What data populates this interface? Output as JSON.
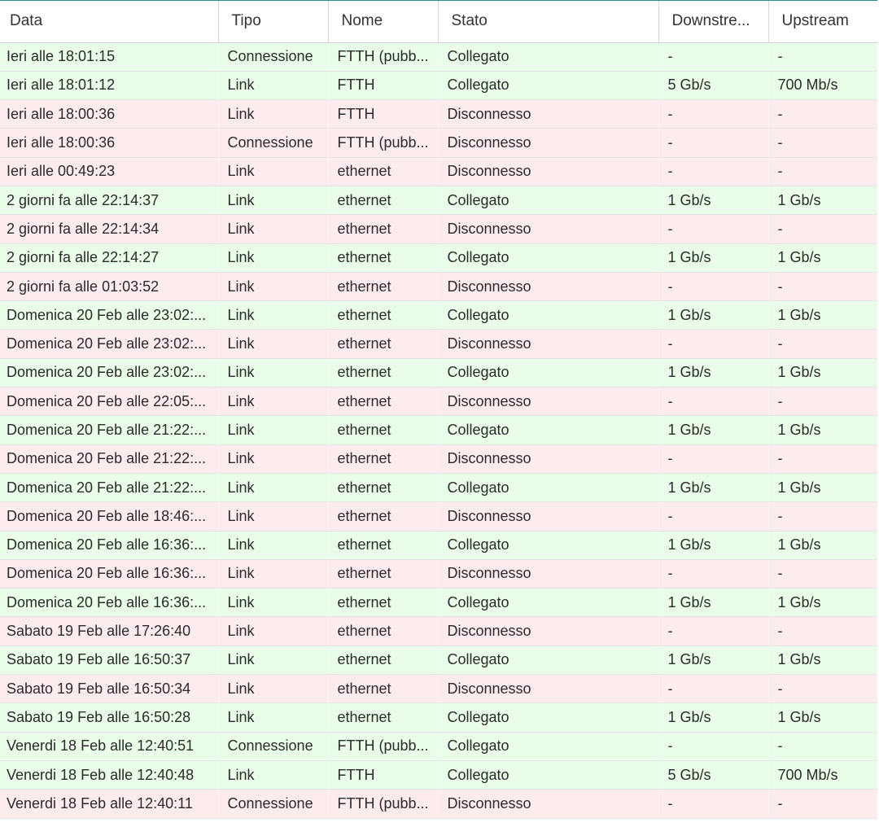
{
  "columns": {
    "data": "Data",
    "tipo": "Tipo",
    "nome": "Nome",
    "stato": "Stato",
    "downstream": "Downstre...",
    "upstream": "Upstream"
  },
  "colors": {
    "connected_row": "#eafde8",
    "disconnected_row": "#fdeced",
    "header_accent": "#2a8a9a"
  },
  "rows": [
    {
      "data": "Ieri alle 18:01:15",
      "tipo": "Connessione",
      "nome": "FTTH (pubb...",
      "stato": "Collegato",
      "downstream": "-",
      "upstream": "-"
    },
    {
      "data": "Ieri alle 18:01:12",
      "tipo": "Link",
      "nome": "FTTH",
      "stato": "Collegato",
      "downstream": "5 Gb/s",
      "upstream": "700 Mb/s"
    },
    {
      "data": "Ieri alle 18:00:36",
      "tipo": "Link",
      "nome": "FTTH",
      "stato": "Disconnesso",
      "downstream": "-",
      "upstream": "-"
    },
    {
      "data": "Ieri alle 18:00:36",
      "tipo": "Connessione",
      "nome": "FTTH (pubb...",
      "stato": "Disconnesso",
      "downstream": "-",
      "upstream": "-"
    },
    {
      "data": "Ieri alle 00:49:23",
      "tipo": "Link",
      "nome": "ethernet",
      "stato": "Disconnesso",
      "downstream": "-",
      "upstream": "-"
    },
    {
      "data": "2 giorni fa alle 22:14:37",
      "tipo": "Link",
      "nome": "ethernet",
      "stato": "Collegato",
      "downstream": "1 Gb/s",
      "upstream": "1 Gb/s"
    },
    {
      "data": "2 giorni fa alle 22:14:34",
      "tipo": "Link",
      "nome": "ethernet",
      "stato": "Disconnesso",
      "downstream": "-",
      "upstream": "-"
    },
    {
      "data": "2 giorni fa alle 22:14:27",
      "tipo": "Link",
      "nome": "ethernet",
      "stato": "Collegato",
      "downstream": "1 Gb/s",
      "upstream": "1 Gb/s"
    },
    {
      "data": "2 giorni fa alle 01:03:52",
      "tipo": "Link",
      "nome": "ethernet",
      "stato": "Disconnesso",
      "downstream": "-",
      "upstream": "-"
    },
    {
      "data": "Domenica 20 Feb alle 23:02:...",
      "tipo": "Link",
      "nome": "ethernet",
      "stato": "Collegato",
      "downstream": "1 Gb/s",
      "upstream": "1 Gb/s"
    },
    {
      "data": "Domenica 20 Feb alle 23:02:...",
      "tipo": "Link",
      "nome": "ethernet",
      "stato": "Disconnesso",
      "downstream": "-",
      "upstream": "-"
    },
    {
      "data": "Domenica 20 Feb alle 23:02:...",
      "tipo": "Link",
      "nome": "ethernet",
      "stato": "Collegato",
      "downstream": "1 Gb/s",
      "upstream": "1 Gb/s"
    },
    {
      "data": "Domenica 20 Feb alle 22:05:...",
      "tipo": "Link",
      "nome": "ethernet",
      "stato": "Disconnesso",
      "downstream": "-",
      "upstream": "-"
    },
    {
      "data": "Domenica 20 Feb alle 21:22:...",
      "tipo": "Link",
      "nome": "ethernet",
      "stato": "Collegato",
      "downstream": "1 Gb/s",
      "upstream": "1 Gb/s"
    },
    {
      "data": "Domenica 20 Feb alle 21:22:...",
      "tipo": "Link",
      "nome": "ethernet",
      "stato": "Disconnesso",
      "downstream": "-",
      "upstream": "-"
    },
    {
      "data": "Domenica 20 Feb alle 21:22:...",
      "tipo": "Link",
      "nome": "ethernet",
      "stato": "Collegato",
      "downstream": "1 Gb/s",
      "upstream": "1 Gb/s"
    },
    {
      "data": "Domenica 20 Feb alle 18:46:...",
      "tipo": "Link",
      "nome": "ethernet",
      "stato": "Disconnesso",
      "downstream": "-",
      "upstream": "-"
    },
    {
      "data": "Domenica 20 Feb alle 16:36:...",
      "tipo": "Link",
      "nome": "ethernet",
      "stato": "Collegato",
      "downstream": "1 Gb/s",
      "upstream": "1 Gb/s"
    },
    {
      "data": "Domenica 20 Feb alle 16:36:...",
      "tipo": "Link",
      "nome": "ethernet",
      "stato": "Disconnesso",
      "downstream": "-",
      "upstream": "-"
    },
    {
      "data": "Domenica 20 Feb alle 16:36:...",
      "tipo": "Link",
      "nome": "ethernet",
      "stato": "Collegato",
      "downstream": "1 Gb/s",
      "upstream": "1 Gb/s"
    },
    {
      "data": "Sabato 19 Feb alle 17:26:40",
      "tipo": "Link",
      "nome": "ethernet",
      "stato": "Disconnesso",
      "downstream": "-",
      "upstream": "-"
    },
    {
      "data": "Sabato 19 Feb alle 16:50:37",
      "tipo": "Link",
      "nome": "ethernet",
      "stato": "Collegato",
      "downstream": "1 Gb/s",
      "upstream": "1 Gb/s"
    },
    {
      "data": "Sabato 19 Feb alle 16:50:34",
      "tipo": "Link",
      "nome": "ethernet",
      "stato": "Disconnesso",
      "downstream": "-",
      "upstream": "-"
    },
    {
      "data": "Sabato 19 Feb alle 16:50:28",
      "tipo": "Link",
      "nome": "ethernet",
      "stato": "Collegato",
      "downstream": "1 Gb/s",
      "upstream": "1 Gb/s"
    },
    {
      "data": "Venerdi 18 Feb alle 12:40:51",
      "tipo": "Connessione",
      "nome": "FTTH (pubb...",
      "stato": "Collegato",
      "downstream": "-",
      "upstream": "-"
    },
    {
      "data": "Venerdi 18 Feb alle 12:40:48",
      "tipo": "Link",
      "nome": "FTTH",
      "stato": "Collegato",
      "downstream": "5 Gb/s",
      "upstream": "700 Mb/s"
    },
    {
      "data": "Venerdi 18 Feb alle 12:40:11",
      "tipo": "Connessione",
      "nome": "FTTH (pubb...",
      "stato": "Disconnesso",
      "downstream": "-",
      "upstream": "-"
    }
  ]
}
